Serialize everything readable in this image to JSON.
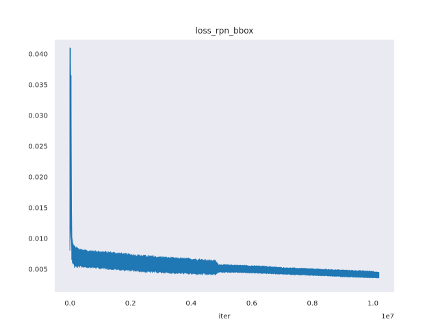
{
  "chart_data": {
    "type": "line",
    "title": "loss_rpn_bbox",
    "xlabel": "iter",
    "ylabel": "",
    "x_offset_label": "1e7",
    "xlim": [
      -500000,
      10700000
    ],
    "ylim": [
      0.0013,
      0.0423
    ],
    "x_ticks": [
      0,
      2000000,
      4000000,
      6000000,
      8000000,
      10000000
    ],
    "x_tick_labels": [
      "0.0",
      "0.2",
      "0.4",
      "0.6",
      "0.8",
      "1.0"
    ],
    "y_ticks": [
      0.005,
      0.01,
      0.015,
      0.02,
      0.025,
      0.03,
      0.035,
      0.04
    ],
    "y_tick_labels": [
      "0.005",
      "0.010",
      "0.015",
      "0.020",
      "0.025",
      "0.030",
      "0.035",
      "0.040"
    ],
    "grid": false,
    "background_color": "#eaeaf2",
    "series": [
      {
        "color": "#1f77b4",
        "x": [
          0,
          20000,
          40000,
          60000,
          80000,
          100000,
          150000,
          250000,
          500000,
          1000000,
          1500000,
          2000000,
          2500000,
          3000000,
          3500000,
          4000000,
          4500000,
          4800000,
          4900000,
          5500000,
          6000000,
          6500000,
          7000000,
          7500000,
          8000000,
          8500000,
          9000000,
          9500000,
          10000000,
          10200000
        ],
        "y_mean": [
          0.012,
          0.028,
          0.022,
          0.011,
          0.0085,
          0.0078,
          0.0072,
          0.0068,
          0.0066,
          0.0064,
          0.0062,
          0.006,
          0.0058,
          0.0056,
          0.0055,
          0.0054,
          0.0053,
          0.0052,
          0.0051,
          0.005,
          0.0049,
          0.0048,
          0.0047,
          0.0046,
          0.0045,
          0.0044,
          0.0043,
          0.0042,
          0.0041,
          0.004
        ],
        "y_low": [
          0.008,
          0.012,
          0.01,
          0.0065,
          0.006,
          0.0058,
          0.0052,
          0.0052,
          0.0052,
          0.005,
          0.0048,
          0.0046,
          0.0044,
          0.0043,
          0.0042,
          0.0041,
          0.004,
          0.004,
          0.0044,
          0.0044,
          0.0043,
          0.0042,
          0.0041,
          0.004,
          0.0039,
          0.0038,
          0.0037,
          0.0036,
          0.0035,
          0.0035
        ],
        "y_high": [
          0.041,
          0.041,
          0.0365,
          0.0105,
          0.0098,
          0.0092,
          0.0088,
          0.0085,
          0.0082,
          0.008,
          0.0078,
          0.0075,
          0.0073,
          0.0071,
          0.0069,
          0.0068,
          0.0066,
          0.0065,
          0.0058,
          0.0057,
          0.0056,
          0.0055,
          0.0053,
          0.0052,
          0.0051,
          0.005,
          0.0049,
          0.0048,
          0.0047,
          0.0045
        ]
      }
    ]
  }
}
